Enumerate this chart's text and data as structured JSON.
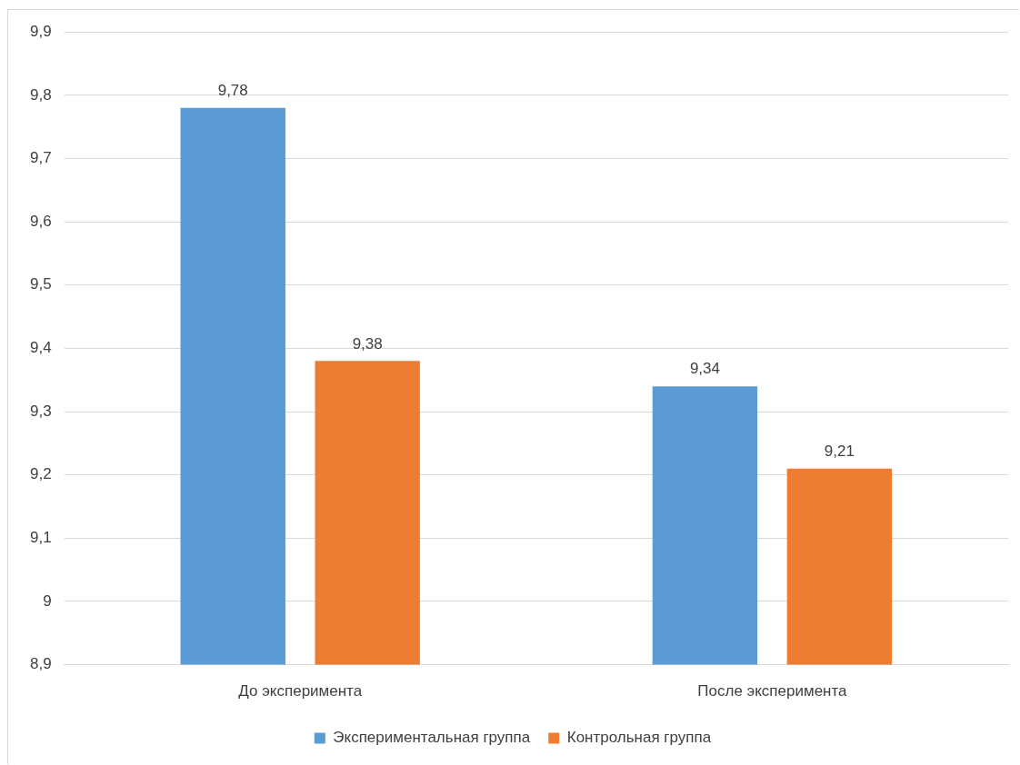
{
  "chart_data": {
    "type": "bar",
    "categories": [
      "До эксперимента",
      "После эксперимента"
    ],
    "series": [
      {
        "name": "Экспериментальная группа",
        "color": "#5b9bd5",
        "values": [
          9.78,
          9.34
        ],
        "value_labels": [
          "9,78",
          "9,34"
        ]
      },
      {
        "name": "Контрольная группа",
        "color": "#ed7d31",
        "values": [
          9.38,
          9.21
        ],
        "value_labels": [
          "9,38",
          "9,21"
        ]
      }
    ],
    "ylim": [
      8.9,
      9.9
    ],
    "yticks": [
      {
        "value": 8.9,
        "label": "8,9"
      },
      9,
      {
        "value": 9.1,
        "label": "9,1"
      },
      {
        "value": 9.2,
        "label": "9,2"
      },
      {
        "value": 9.3,
        "label": "9,3"
      },
      {
        "value": 9.4,
        "label": "9,4"
      },
      {
        "value": 9.5,
        "label": "9,5"
      },
      {
        "value": 9.6,
        "label": "9,6"
      },
      {
        "value": 9.7,
        "label": "9,7"
      },
      {
        "value": 9.8,
        "label": "9,8"
      },
      {
        "value": 9.9,
        "label": "9,9"
      }
    ],
    "grid": "y",
    "legend": "bottom"
  }
}
